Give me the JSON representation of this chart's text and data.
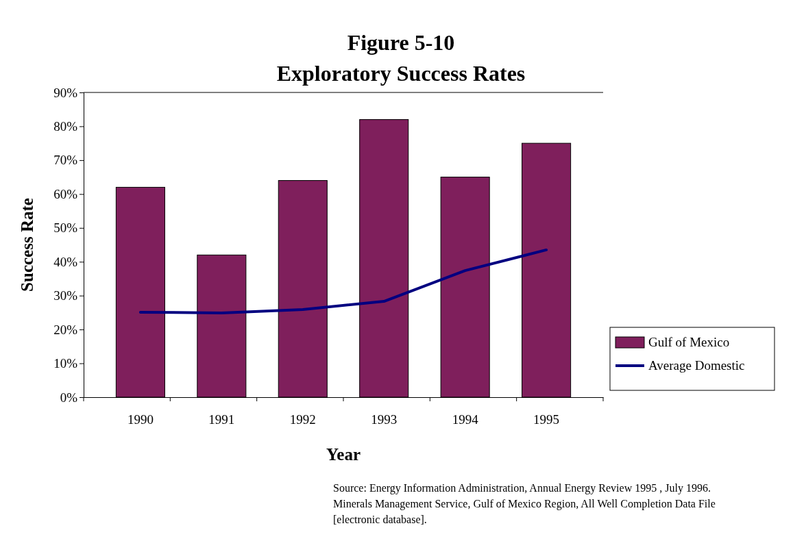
{
  "chart_data": {
    "type": "bar",
    "title": "Figure 5-10",
    "subtitle": "Exploratory Success Rates",
    "xlabel": "Year",
    "ylabel": "Success Rate",
    "categories": [
      "1990",
      "1991",
      "1992",
      "1993",
      "1994",
      "1995"
    ],
    "series": [
      {
        "name": "Gulf of Mexico",
        "color": "#7f1f5c",
        "values": [
          62,
          42,
          64,
          82,
          65,
          75
        ]
      },
      {
        "name": "Average Domestic",
        "type": "line",
        "color": "#000080",
        "values": [
          25.1,
          24.9,
          25.9,
          28.3,
          37.4,
          43.5
        ]
      }
    ],
    "ylim": [
      0,
      90
    ],
    "yticks": [
      {
        "value": 0,
        "label": "0%"
      },
      {
        "value": 10,
        "label": "10%"
      },
      {
        "value": 20,
        "label": "20%"
      },
      {
        "value": 30,
        "label": "30%"
      },
      {
        "value": 40,
        "label": "40%"
      },
      {
        "value": 50,
        "label": "50%"
      },
      {
        "value": 60,
        "label": "60%"
      },
      {
        "value": 70,
        "label": "70%"
      },
      {
        "value": 80,
        "label": "80%"
      },
      {
        "value": 90,
        "label": "90%"
      }
    ],
    "legend": "right",
    "marker": "none",
    "line_style": "solid",
    "annotations": [
      "Source: Energy Information Administration, Annual Energy Review 1995 , July 1996.  Minerals Management Service, Gulf of Mexico Region, All Well Completion Data File  [electronic database]."
    ]
  }
}
